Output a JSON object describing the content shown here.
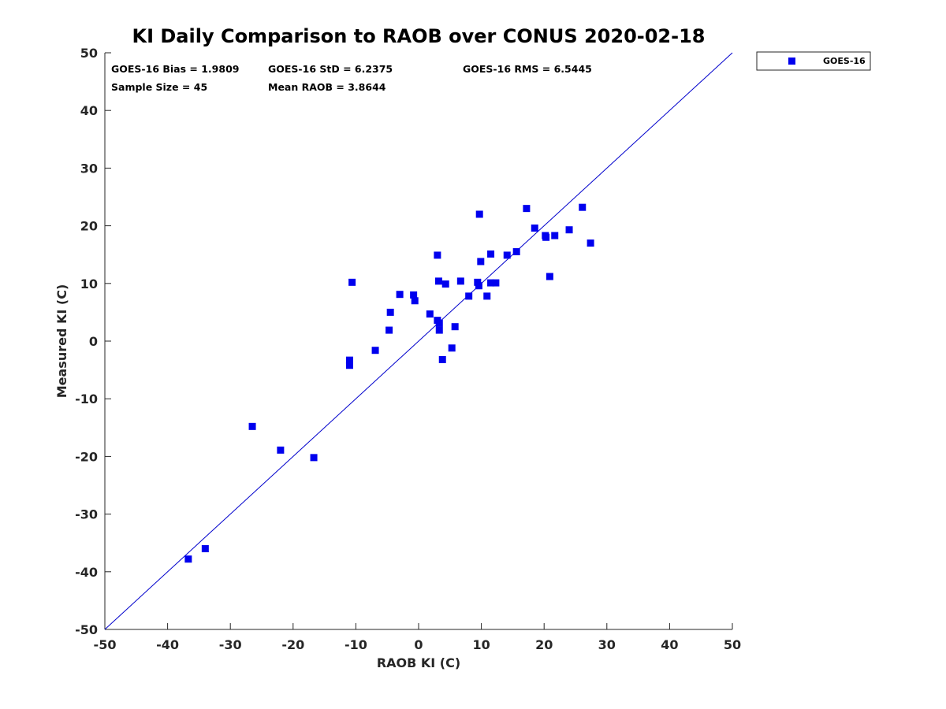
{
  "chart_data": {
    "type": "scatter",
    "title": "KI Daily Comparison to RAOB over CONUS 2020-02-18",
    "xlabel": "RAOB KI (C)",
    "ylabel": "Measured KI (C)",
    "xlim": [
      -50,
      50
    ],
    "ylim": [
      -50,
      50
    ],
    "xticks": [
      -50,
      -40,
      -30,
      -20,
      -10,
      0,
      10,
      20,
      30,
      40,
      50
    ],
    "yticks": [
      -50,
      -40,
      -30,
      -20,
      -10,
      0,
      10,
      20,
      30,
      40,
      50
    ],
    "grid": false,
    "legend_position": "outside-top-right",
    "stats": [
      "GOES-16 Bias = 1.9809",
      "GOES-16 StD = 6.2375",
      "GOES-16 RMS = 6.5445",
      "Sample Size = 45",
      "Mean RAOB = 3.8644"
    ],
    "reference_line": {
      "name": "one-to-one",
      "x": [
        -50,
        50
      ],
      "y": [
        -50,
        50
      ],
      "color": "#0000cc"
    },
    "series": [
      {
        "name": "GOES-16",
        "color": "#0000ee",
        "marker": "square",
        "points": [
          [
            -36.7,
            -37.8
          ],
          [
            -34.0,
            -36.0
          ],
          [
            -26.5,
            -14.8
          ],
          [
            -22.0,
            -18.9
          ],
          [
            -16.7,
            -20.2
          ],
          [
            -10.6,
            10.2
          ],
          [
            -11.0,
            -3.3
          ],
          [
            -11.0,
            -4.2
          ],
          [
            -6.9,
            -1.6
          ],
          [
            -4.7,
            1.9
          ],
          [
            -4.5,
            5.0
          ],
          [
            -3.0,
            8.1
          ],
          [
            -0.8,
            8.0
          ],
          [
            -0.6,
            7.0
          ],
          [
            1.8,
            4.7
          ],
          [
            3.0,
            14.9
          ],
          [
            3.2,
            10.4
          ],
          [
            3.0,
            3.6
          ],
          [
            3.3,
            3.1
          ],
          [
            3.3,
            1.9
          ],
          [
            3.8,
            -3.2
          ],
          [
            4.3,
            9.9
          ],
          [
            5.3,
            -1.2
          ],
          [
            5.8,
            2.5
          ],
          [
            6.7,
            10.4
          ],
          [
            8.0,
            7.8
          ],
          [
            9.4,
            10.2
          ],
          [
            9.6,
            9.6
          ],
          [
            9.7,
            22.0
          ],
          [
            9.9,
            13.8
          ],
          [
            10.9,
            7.8
          ],
          [
            11.5,
            15.1
          ],
          [
            11.5,
            10.1
          ],
          [
            12.3,
            10.1
          ],
          [
            14.1,
            14.9
          ],
          [
            15.6,
            15.5
          ],
          [
            17.2,
            23.0
          ],
          [
            18.5,
            19.6
          ],
          [
            20.2,
            18.3
          ],
          [
            20.3,
            18.0
          ],
          [
            20.9,
            11.2
          ],
          [
            21.7,
            18.3
          ],
          [
            24.0,
            19.3
          ],
          [
            26.1,
            23.2
          ],
          [
            27.4,
            17.0
          ]
        ]
      }
    ]
  }
}
